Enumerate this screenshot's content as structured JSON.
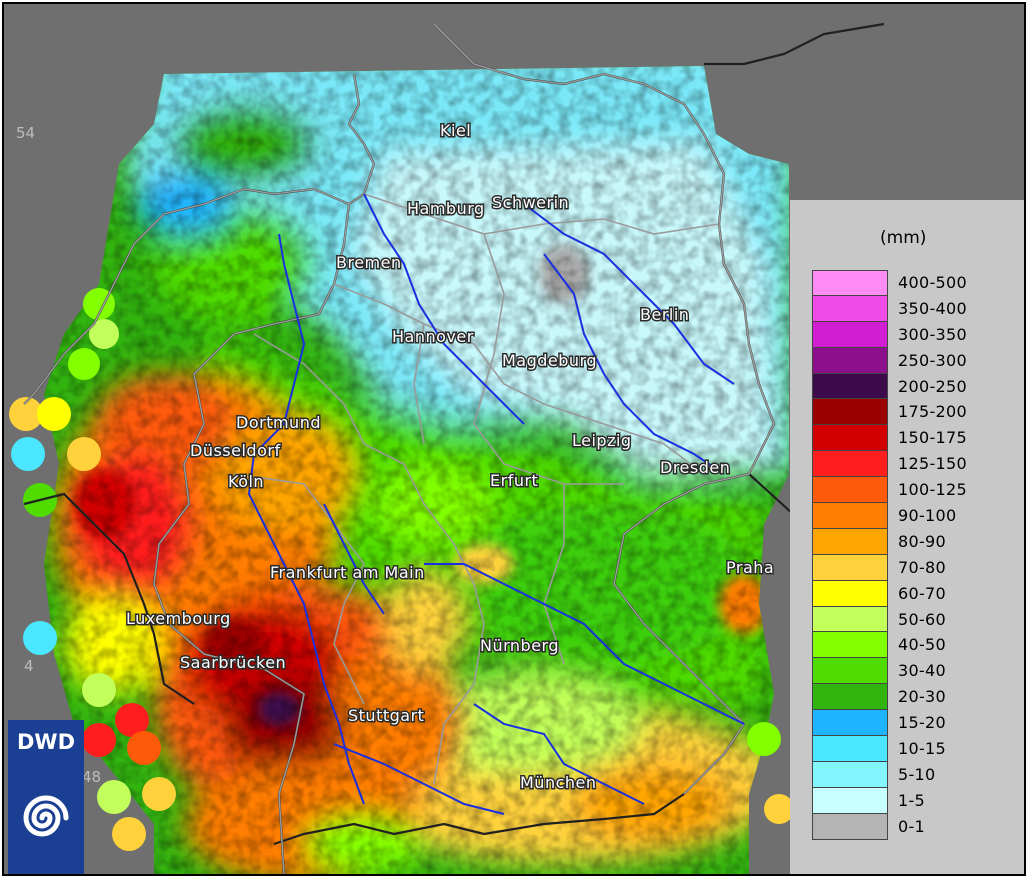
{
  "map": {
    "lat_labels": [
      "54",
      "4",
      "48"
    ],
    "cities": [
      "Kiel",
      "Hamburg",
      "Schwerin",
      "Bremen",
      "Berlin",
      "Hannover",
      "Magdeburg",
      "Dortmund",
      "Düsseldorf",
      "Leipzig",
      "Dresden",
      "Köln",
      "Erfurt",
      "Frankfurt am Main",
      "Praha",
      "Luxembourg",
      "Nürnberg",
      "Saarbrücken",
      "Stuttgart",
      "München"
    ]
  },
  "legend": {
    "unit": "(mm)",
    "classes": [
      {
        "label": "400-500",
        "color": "#ff8cf5"
      },
      {
        "label": "350-400",
        "color": "#f04be6"
      },
      {
        "label": "300-350",
        "color": "#d21ed2"
      },
      {
        "label": "250-300",
        "color": "#8c0f8c"
      },
      {
        "label": "200-250",
        "color": "#3c0a4b"
      },
      {
        "label": "175-200",
        "color": "#9b0000"
      },
      {
        "label": "150-175",
        "color": "#d20000"
      },
      {
        "label": "125-150",
        "color": "#ff1e1e"
      },
      {
        "label": "100-125",
        "color": "#ff5a0a"
      },
      {
        "label": "90-100",
        "color": "#ff7d00"
      },
      {
        "label": "80-90",
        "color": "#ffa500"
      },
      {
        "label": "70-80",
        "color": "#ffd23c"
      },
      {
        "label": "60-70",
        "color": "#ffff00"
      },
      {
        "label": "50-60",
        "color": "#c3ff5a"
      },
      {
        "label": "40-50",
        "color": "#82ff00"
      },
      {
        "label": "30-40",
        "color": "#50dc00"
      },
      {
        "label": "20-30",
        "color": "#32b40f"
      },
      {
        "label": "15-20",
        "color": "#1eb4ff"
      },
      {
        "label": "10-15",
        "color": "#4be6ff"
      },
      {
        "label": "5-10",
        "color": "#82f5ff"
      },
      {
        "label": "1-5",
        "color": "#c8ffff"
      },
      {
        "label": "0-1",
        "color": "#b4b4b4"
      }
    ]
  },
  "logo": {
    "text": "DWD"
  }
}
